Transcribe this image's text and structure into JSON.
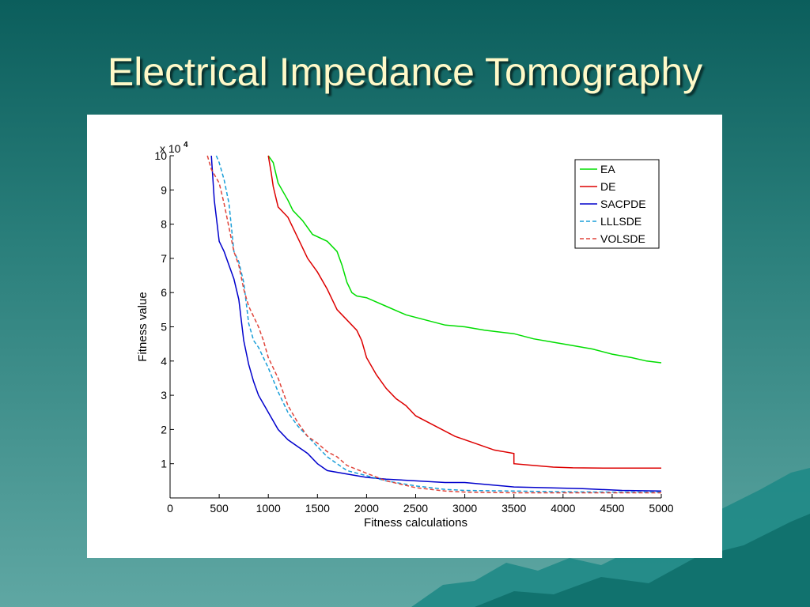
{
  "slide": {
    "title": "Electrical Impedance Tomography"
  },
  "colors": {
    "background_top": "#0b5e5c",
    "background_bottom": "#5fa7a3",
    "title": "#fff9c8"
  },
  "chart_data": {
    "type": "line",
    "title": "",
    "xlabel": "Fitness calculations",
    "ylabel": "Fitness value",
    "y_multiplier": "x 10",
    "y_multiplier_exp": "4",
    "xlim": [
      0,
      5000
    ],
    "ylim": [
      0,
      10
    ],
    "xticks": [
      0,
      500,
      1000,
      1500,
      2000,
      2500,
      3000,
      3500,
      4000,
      4500,
      5000
    ],
    "yticks": [
      1,
      2,
      3,
      4,
      5,
      6,
      7,
      8,
      9,
      10
    ],
    "grid": false,
    "legend": "top-right",
    "series": [
      {
        "name": "EA",
        "color": "#00dd00",
        "dash": "solid",
        "x": [
          1000,
          1050,
          1100,
          1200,
          1250,
          1350,
          1450,
          1600,
          1700,
          1750,
          1800,
          1850,
          1900,
          2000,
          2200,
          2400,
          2600,
          2800,
          3000,
          3200,
          3500,
          3700,
          3900,
          4100,
          4300,
          4500,
          4700,
          4850,
          5000
        ],
        "y": [
          10,
          9.8,
          9.2,
          8.7,
          8.4,
          8.1,
          7.7,
          7.5,
          7.2,
          6.8,
          6.3,
          6.0,
          5.9,
          5.85,
          5.6,
          5.35,
          5.2,
          5.05,
          5.0,
          4.9,
          4.8,
          4.65,
          4.55,
          4.45,
          4.35,
          4.2,
          4.1,
          4.0,
          3.95
        ]
      },
      {
        "name": "DE",
        "color": "#dd0000",
        "dash": "solid",
        "x": [
          1000,
          1030,
          1050,
          1100,
          1200,
          1300,
          1400,
          1500,
          1600,
          1700,
          1800,
          1900,
          1950,
          2000,
          2100,
          2200,
          2300,
          2400,
          2500,
          2700,
          2900,
          3100,
          3300,
          3500,
          3500,
          3700,
          3900,
          4100,
          4500,
          5000
        ],
        "y": [
          10,
          9.5,
          9.1,
          8.5,
          8.2,
          7.6,
          7.0,
          6.6,
          6.1,
          5.5,
          5.2,
          4.9,
          4.6,
          4.1,
          3.6,
          3.2,
          2.9,
          2.7,
          2.4,
          2.1,
          1.8,
          1.6,
          1.4,
          1.3,
          1.0,
          0.95,
          0.9,
          0.88,
          0.87,
          0.87
        ]
      },
      {
        "name": "SACPDE",
        "color": "#0000cc",
        "dash": "solid",
        "x": [
          420,
          450,
          500,
          550,
          600,
          650,
          700,
          750,
          800,
          850,
          900,
          1000,
          1100,
          1200,
          1300,
          1400,
          1500,
          1600,
          1800,
          2000,
          2200,
          2500,
          2800,
          3000,
          3200,
          3500,
          3800,
          4200,
          4600,
          5000
        ],
        "y": [
          10,
          8.7,
          7.5,
          7.2,
          6.8,
          6.4,
          5.8,
          4.6,
          3.9,
          3.4,
          3.0,
          2.5,
          2.0,
          1.7,
          1.5,
          1.3,
          1.0,
          0.8,
          0.7,
          0.6,
          0.55,
          0.5,
          0.45,
          0.45,
          0.4,
          0.32,
          0.3,
          0.27,
          0.22,
          0.2
        ]
      },
      {
        "name": "LLLSDE",
        "color": "#1a9ed8",
        "dash": "dashed",
        "x": [
          470,
          500,
          550,
          600,
          650,
          700,
          750,
          800,
          850,
          900,
          1000,
          1100,
          1200,
          1300,
          1400,
          1500,
          1600,
          1700,
          1800,
          2000,
          2200,
          2500,
          2800,
          3000,
          3500,
          4000,
          4500,
          5000
        ],
        "y": [
          10,
          9.8,
          9.3,
          8.6,
          7.2,
          6.9,
          6.3,
          5.1,
          4.6,
          4.4,
          3.8,
          3.1,
          2.5,
          2.1,
          1.8,
          1.5,
          1.2,
          1.0,
          0.8,
          0.65,
          0.5,
          0.35,
          0.25,
          0.22,
          0.2,
          0.18,
          0.17,
          0.17
        ]
      },
      {
        "name": "VOLSDE",
        "color": "#e0443a",
        "dash": "dashed",
        "x": [
          380,
          420,
          500,
          550,
          600,
          650,
          700,
          750,
          800,
          850,
          900,
          950,
          1000,
          1100,
          1200,
          1300,
          1400,
          1500,
          1600,
          1700,
          1800,
          2000,
          2200,
          2500,
          2800,
          3000,
          3500,
          4000,
          4500,
          5000
        ],
        "y": [
          10,
          9.6,
          9.2,
          8.6,
          7.9,
          7.2,
          6.8,
          6.1,
          5.6,
          5.3,
          5.0,
          4.6,
          4.1,
          3.5,
          2.7,
          2.2,
          1.8,
          1.6,
          1.35,
          1.2,
          0.95,
          0.72,
          0.5,
          0.3,
          0.2,
          0.17,
          0.15,
          0.15,
          0.15,
          0.15
        ]
      }
    ]
  }
}
